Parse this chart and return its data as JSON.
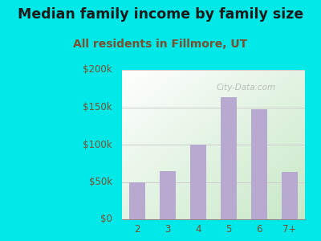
{
  "categories": [
    "2",
    "3",
    "4",
    "5",
    "6",
    "7+"
  ],
  "values": [
    50000,
    65000,
    100000,
    163000,
    147000,
    63000
  ],
  "bar_color": "#b8a9d0",
  "title": "Median family income by family size",
  "subtitle": "All residents in Fillmore, UT",
  "ylim": [
    0,
    200000
  ],
  "yticks": [
    0,
    50000,
    100000,
    150000,
    200000
  ],
  "ytick_labels": [
    "$0",
    "$50k",
    "$100k",
    "$150k",
    "$200k"
  ],
  "outer_bg": "#00e8e8",
  "plot_bg_topleft": "#c8e8c8",
  "plot_bg_bottomright": "#ffffff",
  "title_color": "#1a1a1a",
  "subtitle_color": "#7a5030",
  "tick_color": "#7a5030",
  "grid_color": "#cccccc",
  "watermark": "City-Data.com",
  "title_fontsize": 12.5,
  "subtitle_fontsize": 10
}
